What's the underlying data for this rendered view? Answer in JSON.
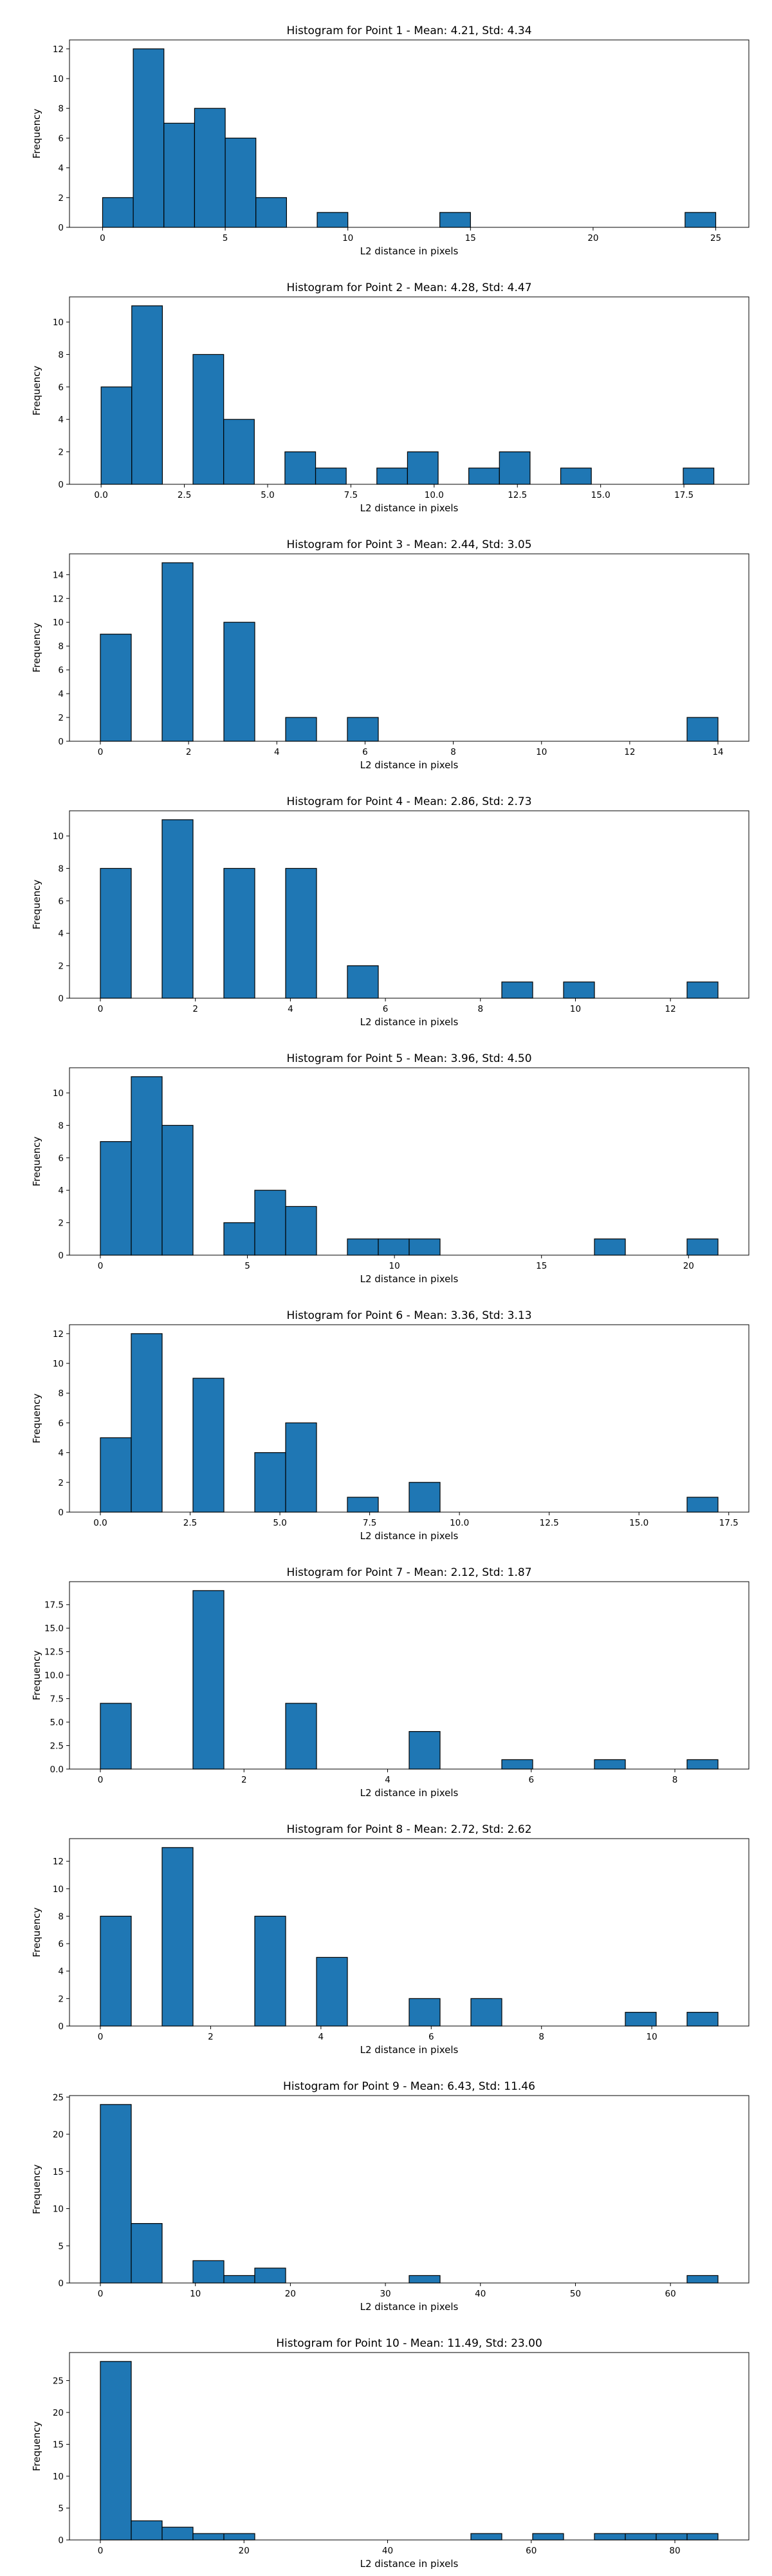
{
  "figure": {
    "bar_color": "#1f77b4",
    "edge_color": "#000000",
    "background": "#ffffff"
  },
  "chart_data": [
    {
      "type": "bar",
      "title": "Histogram for Point 1 - Mean: 4.21, Std: 4.34",
      "xlabel": "L2 distance in pixels",
      "ylabel": "Frequency",
      "xlim": [
        -1.35,
        26.35
      ],
      "ylim": [
        0,
        12.6
      ],
      "xticks": [
        0,
        5,
        10,
        15,
        20,
        25
      ],
      "xticklabels": [
        "0",
        "5",
        "10",
        "15",
        "20",
        "25"
      ],
      "yticks": [
        0,
        2,
        4,
        6,
        8,
        10,
        12
      ],
      "yticklabels": [
        "0",
        "2",
        "4",
        "6",
        "8",
        "10",
        "12"
      ],
      "bins": [
        {
          "x0": 0,
          "x1": 1.25,
          "count": 2
        },
        {
          "x0": 1.25,
          "x1": 2.5,
          "count": 12
        },
        {
          "x0": 2.5,
          "x1": 3.75,
          "count": 7
        },
        {
          "x0": 3.75,
          "x1": 5,
          "count": 8
        },
        {
          "x0": 5,
          "x1": 6.25,
          "count": 6
        },
        {
          "x0": 6.25,
          "x1": 7.5,
          "count": 2
        },
        {
          "x0": 8.75,
          "x1": 10,
          "count": 1
        },
        {
          "x0": 13.75,
          "x1": 15,
          "count": 1
        },
        {
          "x0": 23.75,
          "x1": 25,
          "count": 1
        }
      ]
    },
    {
      "type": "bar",
      "title": "Histogram for Point 2 - Mean: 4.28, Std: 4.47",
      "xlabel": "L2 distance in pixels",
      "ylabel": "Frequency",
      "xlim": [
        -0.95,
        19.45
      ],
      "ylim": [
        0,
        11.55
      ],
      "xticks": [
        0,
        2.5,
        5,
        7.5,
        10,
        12.5,
        15,
        17.5
      ],
      "xticklabels": [
        "0.0",
        "2.5",
        "5.0",
        "7.5",
        "10.0",
        "12.5",
        "15.0",
        "17.5"
      ],
      "yticks": [
        0,
        2,
        4,
        6,
        8,
        10
      ],
      "yticklabels": [
        "0",
        "2",
        "4",
        "6",
        "8",
        "10"
      ],
      "bins": [
        {
          "x0": 0,
          "x1": 0.92,
          "count": 6
        },
        {
          "x0": 0.92,
          "x1": 1.84,
          "count": 11
        },
        {
          "x0": 2.76,
          "x1": 3.68,
          "count": 8
        },
        {
          "x0": 3.68,
          "x1": 4.6,
          "count": 4
        },
        {
          "x0": 5.52,
          "x1": 6.44,
          "count": 2
        },
        {
          "x0": 6.44,
          "x1": 7.36,
          "count": 1
        },
        {
          "x0": 8.28,
          "x1": 9.2,
          "count": 1
        },
        {
          "x0": 9.2,
          "x1": 10.12,
          "count": 2
        },
        {
          "x0": 11.04,
          "x1": 11.96,
          "count": 1
        },
        {
          "x0": 11.96,
          "x1": 12.88,
          "count": 2
        },
        {
          "x0": 13.8,
          "x1": 14.72,
          "count": 1
        },
        {
          "x0": 17.48,
          "x1": 18.4,
          "count": 1
        }
      ]
    },
    {
      "type": "bar",
      "title": "Histogram for Point 3 - Mean: 2.44, Std: 3.05",
      "xlabel": "L2 distance in pixels",
      "ylabel": "Frequency",
      "xlim": [
        -0.7,
        14.7
      ],
      "ylim": [
        0,
        15.75
      ],
      "xticks": [
        0,
        2,
        4,
        6,
        8,
        10,
        12,
        14
      ],
      "xticklabels": [
        "0",
        "2",
        "4",
        "6",
        "8",
        "10",
        "12",
        "14"
      ],
      "yticks": [
        0,
        2,
        4,
        6,
        8,
        10,
        12,
        14
      ],
      "yticklabels": [
        "0",
        "2",
        "4",
        "6",
        "8",
        "10",
        "12",
        "14"
      ],
      "bins": [
        {
          "x0": 0,
          "x1": 0.7,
          "count": 9
        },
        {
          "x0": 1.4,
          "x1": 2.1,
          "count": 15
        },
        {
          "x0": 2.8,
          "x1": 3.5,
          "count": 10
        },
        {
          "x0": 4.2,
          "x1": 4.9,
          "count": 2
        },
        {
          "x0": 5.6,
          "x1": 6.3,
          "count": 2
        },
        {
          "x0": 13.3,
          "x1": 14,
          "count": 2
        }
      ]
    },
    {
      "type": "bar",
      "title": "Histogram for Point 4 - Mean: 2.86, Std: 2.73",
      "xlabel": "L2 distance in pixels",
      "ylabel": "Frequency",
      "xlim": [
        -0.65,
        13.65
      ],
      "ylim": [
        0,
        11.55
      ],
      "xticks": [
        0,
        2,
        4,
        6,
        8,
        10,
        12
      ],
      "xticklabels": [
        "0",
        "2",
        "4",
        "6",
        "8",
        "10",
        "12"
      ],
      "yticks": [
        0,
        2,
        4,
        6,
        8,
        10
      ],
      "yticklabels": [
        "0",
        "2",
        "4",
        "6",
        "8",
        "10"
      ],
      "bins": [
        {
          "x0": 0,
          "x1": 0.65,
          "count": 8
        },
        {
          "x0": 1.3,
          "x1": 1.95,
          "count": 11
        },
        {
          "x0": 2.6,
          "x1": 3.25,
          "count": 8
        },
        {
          "x0": 3.9,
          "x1": 4.55,
          "count": 8
        },
        {
          "x0": 5.2,
          "x1": 5.85,
          "count": 2
        },
        {
          "x0": 8.45,
          "x1": 9.1,
          "count": 1
        },
        {
          "x0": 9.75,
          "x1": 10.4,
          "count": 1
        },
        {
          "x0": 12.35,
          "x1": 13,
          "count": 1
        }
      ]
    },
    {
      "type": "bar",
      "title": "Histogram for Point 5 - Mean: 3.96, Std: 4.50",
      "xlabel": "L2 distance in pixels",
      "ylabel": "Frequency",
      "xlim": [
        -1.05,
        22.05
      ],
      "ylim": [
        0,
        11.55
      ],
      "xticks": [
        0,
        5,
        10,
        15,
        20
      ],
      "xticklabels": [
        "0",
        "5",
        "10",
        "15",
        "20"
      ],
      "yticks": [
        0,
        2,
        4,
        6,
        8,
        10
      ],
      "yticklabels": [
        "0",
        "2",
        "4",
        "6",
        "8",
        "10"
      ],
      "bins": [
        {
          "x0": 0,
          "x1": 1.05,
          "count": 7
        },
        {
          "x0": 1.05,
          "x1": 2.1,
          "count": 11
        },
        {
          "x0": 2.1,
          "x1": 3.15,
          "count": 8
        },
        {
          "x0": 4.2,
          "x1": 5.25,
          "count": 2
        },
        {
          "x0": 5.25,
          "x1": 6.3,
          "count": 4
        },
        {
          "x0": 6.3,
          "x1": 7.35,
          "count": 3
        },
        {
          "x0": 8.4,
          "x1": 9.45,
          "count": 1
        },
        {
          "x0": 9.45,
          "x1": 10.5,
          "count": 1
        },
        {
          "x0": 10.5,
          "x1": 11.55,
          "count": 1
        },
        {
          "x0": 16.8,
          "x1": 17.85,
          "count": 1
        },
        {
          "x0": 19.95,
          "x1": 21,
          "count": 1
        }
      ]
    },
    {
      "type": "bar",
      "title": "Histogram for Point 6 - Mean: 3.36, Std: 3.13",
      "xlabel": "L2 distance in pixels",
      "ylabel": "Frequency",
      "xlim": [
        -0.86,
        18.06
      ],
      "ylim": [
        0,
        12.6
      ],
      "xticks": [
        0,
        2.5,
        5,
        7.5,
        10,
        12.5,
        15,
        17.5
      ],
      "xticklabels": [
        "0.0",
        "2.5",
        "5.0",
        "7.5",
        "10.0",
        "12.5",
        "15.0",
        "17.5"
      ],
      "yticks": [
        0,
        2,
        4,
        6,
        8,
        10,
        12
      ],
      "yticklabels": [
        "0",
        "2",
        "4",
        "6",
        "8",
        "10",
        "12"
      ],
      "bins": [
        {
          "x0": 0,
          "x1": 0.86,
          "count": 5
        },
        {
          "x0": 0.86,
          "x1": 1.72,
          "count": 12
        },
        {
          "x0": 2.58,
          "x1": 3.44,
          "count": 9
        },
        {
          "x0": 4.3,
          "x1": 5.16,
          "count": 4
        },
        {
          "x0": 5.16,
          "x1": 6.02,
          "count": 6
        },
        {
          "x0": 6.88,
          "x1": 7.74,
          "count": 1
        },
        {
          "x0": 8.6,
          "x1": 9.46,
          "count": 2
        },
        {
          "x0": 16.34,
          "x1": 17.2,
          "count": 1
        }
      ]
    },
    {
      "type": "bar",
      "title": "Histogram for Point 7 - Mean: 2.12, Std: 1.87",
      "xlabel": "L2 distance in pixels",
      "ylabel": "Frequency",
      "xlim": [
        -0.43,
        9.03
      ],
      "ylim": [
        0,
        19.95
      ],
      "xticks": [
        0,
        2,
        4,
        6,
        8
      ],
      "xticklabels": [
        "0",
        "2",
        "4",
        "6",
        "8"
      ],
      "yticks": [
        0,
        2.5,
        5,
        7.5,
        10,
        12.5,
        15,
        17.5
      ],
      "yticklabels": [
        "0.0",
        "2.5",
        "5.0",
        "7.5",
        "10.0",
        "12.5",
        "15.0",
        "17.5"
      ],
      "bins": [
        {
          "x0": 0,
          "x1": 0.43,
          "count": 7
        },
        {
          "x0": 1.29,
          "x1": 1.72,
          "count": 19
        },
        {
          "x0": 2.58,
          "x1": 3.01,
          "count": 7
        },
        {
          "x0": 4.3,
          "x1": 4.73,
          "count": 4
        },
        {
          "x0": 5.59,
          "x1": 6.02,
          "count": 1
        },
        {
          "x0": 6.88,
          "x1": 7.31,
          "count": 1
        },
        {
          "x0": 8.17,
          "x1": 8.6,
          "count": 1
        }
      ]
    },
    {
      "type": "bar",
      "title": "Histogram for Point 8 - Mean: 2.72, Std: 2.62",
      "xlabel": "L2 distance in pixels",
      "ylabel": "Frequency",
      "xlim": [
        -0.56,
        11.76
      ],
      "ylim": [
        0,
        13.65
      ],
      "xticks": [
        0,
        2,
        4,
        6,
        8,
        10
      ],
      "xticklabels": [
        "0",
        "2",
        "4",
        "6",
        "8",
        "10"
      ],
      "yticks": [
        0,
        2,
        4,
        6,
        8,
        10,
        12
      ],
      "yticklabels": [
        "0",
        "2",
        "4",
        "6",
        "8",
        "10",
        "12"
      ],
      "bins": [
        {
          "x0": 0,
          "x1": 0.56,
          "count": 8
        },
        {
          "x0": 1.12,
          "x1": 1.68,
          "count": 13
        },
        {
          "x0": 2.8,
          "x1": 3.36,
          "count": 8
        },
        {
          "x0": 3.92,
          "x1": 4.48,
          "count": 5
        },
        {
          "x0": 5.6,
          "x1": 6.16,
          "count": 2
        },
        {
          "x0": 6.72,
          "x1": 7.28,
          "count": 2
        },
        {
          "x0": 9.52,
          "x1": 10.08,
          "count": 1
        },
        {
          "x0": 10.64,
          "x1": 11.2,
          "count": 1
        }
      ]
    },
    {
      "type": "bar",
      "title": "Histogram for Point 9 - Mean: 6.43, Std: 11.46",
      "xlabel": "L2 distance in pixels",
      "ylabel": "Frequency",
      "xlim": [
        -3.25,
        68.25
      ],
      "ylim": [
        0,
        25.2
      ],
      "xticks": [
        0,
        10,
        20,
        30,
        40,
        50,
        60
      ],
      "xticklabels": [
        "0",
        "10",
        "20",
        "30",
        "40",
        "50",
        "60"
      ],
      "yticks": [
        0,
        5,
        10,
        15,
        20,
        25
      ],
      "yticklabels": [
        "0",
        "5",
        "10",
        "15",
        "20",
        "25"
      ],
      "bins": [
        {
          "x0": 0,
          "x1": 3.25,
          "count": 24
        },
        {
          "x0": 3.25,
          "x1": 6.5,
          "count": 8
        },
        {
          "x0": 9.75,
          "x1": 13,
          "count": 3
        },
        {
          "x0": 13,
          "x1": 16.25,
          "count": 1
        },
        {
          "x0": 16.25,
          "x1": 19.5,
          "count": 2
        },
        {
          "x0": 32.5,
          "x1": 35.75,
          "count": 1
        },
        {
          "x0": 61.75,
          "x1": 65,
          "count": 1
        }
      ]
    },
    {
      "type": "bar",
      "title": "Histogram for Point 10 - Mean: 11.49, Std: 23.00",
      "xlabel": "L2 distance in pixels",
      "ylabel": "Frequency",
      "xlim": [
        -4.3,
        90.3
      ],
      "ylim": [
        0,
        29.4
      ],
      "xticks": [
        0,
        20,
        40,
        60,
        80
      ],
      "xticklabels": [
        "0",
        "20",
        "40",
        "60",
        "80"
      ],
      "yticks": [
        0,
        5,
        10,
        15,
        20,
        25
      ],
      "yticklabels": [
        "0",
        "5",
        "10",
        "15",
        "20",
        "25"
      ],
      "bins": [
        {
          "x0": 0,
          "x1": 4.3,
          "count": 28
        },
        {
          "x0": 4.3,
          "x1": 8.6,
          "count": 3
        },
        {
          "x0": 8.6,
          "x1": 12.9,
          "count": 2
        },
        {
          "x0": 12.9,
          "x1": 17.2,
          "count": 1
        },
        {
          "x0": 17.2,
          "x1": 21.5,
          "count": 1
        },
        {
          "x0": 51.6,
          "x1": 55.9,
          "count": 1
        },
        {
          "x0": 60.2,
          "x1": 64.5,
          "count": 1
        },
        {
          "x0": 68.8,
          "x1": 73.1,
          "count": 1
        },
        {
          "x0": 73.1,
          "x1": 77.4,
          "count": 1
        },
        {
          "x0": 77.4,
          "x1": 81.7,
          "count": 1
        },
        {
          "x0": 81.7,
          "x1": 86,
          "count": 1
        }
      ]
    }
  ]
}
